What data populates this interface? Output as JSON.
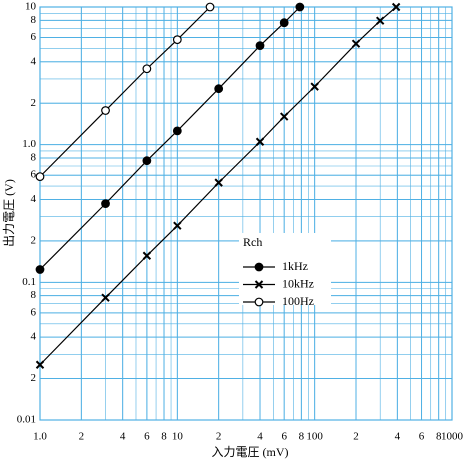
{
  "chart_data": {
    "type": "line",
    "xlabel": "入力電圧 (mV)",
    "ylabel": "出力電圧 (V)",
    "xscale": "log",
    "yscale": "log",
    "grid": true,
    "grid_color": "#4fb0e4",
    "xlim": [
      1,
      1000
    ],
    "ylim": [
      0.01,
      10
    ],
    "xticks": [
      {
        "value": 1,
        "label": "1.0"
      },
      2,
      4,
      6,
      8,
      10,
      {
        "value": 20,
        "label": "2"
      },
      {
        "value": 40,
        "label": "4"
      },
      {
        "value": 60,
        "label": "6"
      },
      {
        "value": 80,
        "label": "8"
      },
      100,
      {
        "value": 200,
        "label": "2"
      },
      {
        "value": 400,
        "label": "4"
      },
      {
        "value": 600,
        "label": "6"
      },
      {
        "value": 800,
        "label": "8"
      },
      1000
    ],
    "yticks": [
      0.01,
      {
        "value": 0.02,
        "label": "2"
      },
      {
        "value": 0.04,
        "label": "4"
      },
      {
        "value": 0.06,
        "label": "6"
      },
      {
        "value": 0.08,
        "label": "8"
      },
      0.1,
      {
        "value": 0.2,
        "label": "2"
      },
      {
        "value": 0.4,
        "label": "4"
      },
      {
        "value": 0.6,
        "label": "6"
      },
      {
        "value": 0.8,
        "label": "8"
      },
      {
        "value": 1,
        "label": "1.0"
      },
      2,
      4,
      6,
      8,
      10
    ],
    "legend_title": "Rch",
    "legend": "center",
    "series": [
      {
        "name": "1kHz",
        "color": "#000000",
        "marker": "filled",
        "x": [
          1,
          3,
          6,
          10,
          20,
          40,
          60,
          78
        ],
        "values": [
          0.124,
          0.373,
          0.765,
          1.26,
          2.55,
          5.24,
          7.69,
          10
        ]
      },
      {
        "name": "10kHz",
        "color": "#000000",
        "marker": "cross",
        "x": [
          1,
          3,
          6,
          10,
          20,
          40,
          60,
          100,
          200,
          300,
          392
        ],
        "values": [
          0.0252,
          0.0774,
          0.156,
          0.258,
          0.53,
          1.05,
          1.6,
          2.64,
          5.41,
          7.95,
          10
        ]
      },
      {
        "name": "100Hz",
        "color": "#000000",
        "marker": "open",
        "x": [
          1,
          3,
          6,
          10,
          17.3
        ],
        "values": [
          0.586,
          1.77,
          3.56,
          5.79,
          10
        ]
      }
    ]
  }
}
